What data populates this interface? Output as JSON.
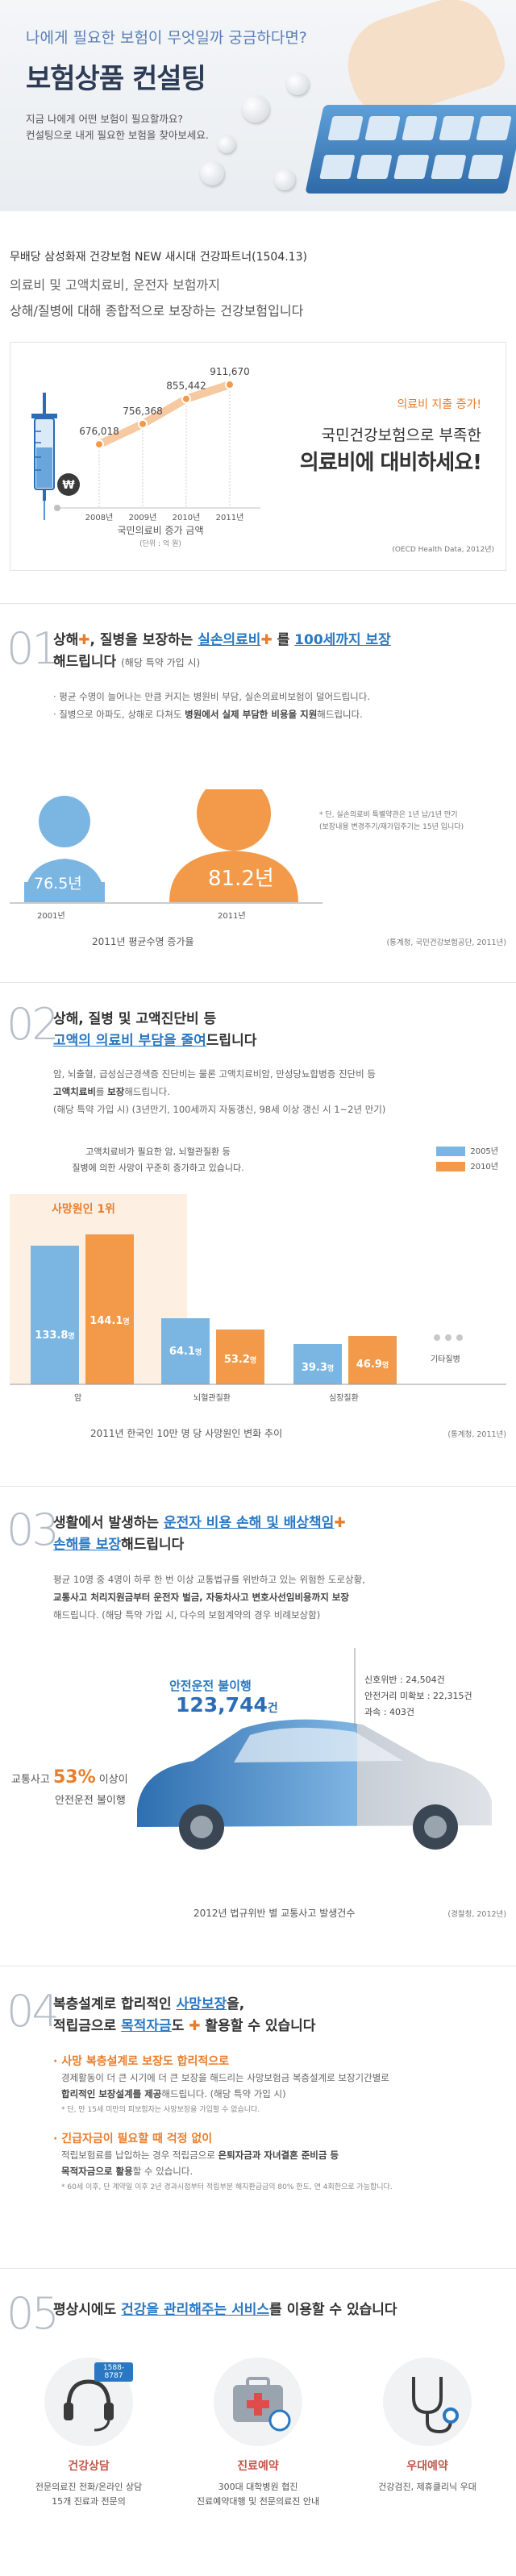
{
  "hero": {
    "subtitle": "나에게 필요한 보험이 무엇일까 궁금하다면?",
    "title": "보험상품 컨설팅",
    "desc1": "지금 나에게 어떤 보험이 필요할까요?",
    "desc2": "컨설팅으로 내게 필요한 보험을 찾아보세요."
  },
  "intro": {
    "product": "무배당 삼성화재 건강보험 NEW 새시대 건강파트너(1504.13)",
    "line2": "의료비 및 고액치료비, 운전자 보험까지",
    "line3": "상해/질병에 대해 종합적으로 보장하는 건강보험입니다"
  },
  "expense_chart": {
    "title": "국민의료비 증가 금액",
    "unit": "(단위 : 억 원)",
    "source": "(OECD Health Data, 2012년)",
    "alert": "의료비 지출 증가!",
    "msg1": "국민건강보험으로 부족한",
    "msg2": "의료비에 대비하세요!",
    "currency_icon": "₩",
    "labels": [
      "676,018",
      "756,368",
      "855,442",
      "911,670"
    ],
    "years": [
      "2008년",
      "2009년",
      "2010년",
      "2011년"
    ]
  },
  "chart_data": {
    "type": "line",
    "title": "국민의료비 증가 금액",
    "categories": [
      "2008년",
      "2009년",
      "2010년",
      "2011년"
    ],
    "values": [
      676018,
      756368,
      855442,
      911670
    ],
    "ylabel": "억 원",
    "ylim": [
      600000,
      950000
    ]
  },
  "sec1": {
    "num": "01",
    "head_a": "상해",
    "head_b": ", 질병을 보장하는 ",
    "head_c": "실손의료비",
    "head_d": " 를 ",
    "head_e": "100세까지 보장",
    "head_f": "해드립니다",
    "head_note": "(해당 특약 가입 시)",
    "b1": "· 평균 수명이 늘어나는 만큼 커지는 병원비 부담, 실손의료비보험이 덜어드립니다.",
    "b2a": "· 질병으로 아파도, 상해로 다쳐도 ",
    "b2b": "병원에서 실제 부담한 비용을 지원",
    "b2c": "해드립니다.",
    "note1": "* 단, 실손의료비 특별약관은 1년 납/1년 만기",
    "note2": "(보장내용 변경주기/재가입주기는 15년 입니다)",
    "age1": "76.5년",
    "age2": "81.2년",
    "year1": "2001년",
    "year2": "2011년",
    "caption": "2011년 평균수명 증가율",
    "source": "(통계청, 국민건강보험공단, 2011년)"
  },
  "sec2": {
    "num": "02",
    "h1": "상해, 질병 및 고액진단비 등",
    "h2": "고액의 의료비 부담을 줄여",
    "h3": "드립니다",
    "b1": "암, 뇌출혈, 급성심근경색증 진단비는 물론 고액치료비암, 만성당뇨합병증 진단비 등",
    "b2a": "고액치료비",
    "b2b": "를 ",
    "b2c": "보장",
    "b2d": "해드립니다.",
    "b3": "(해당 특약 가입 시) (3년만기, 100세까지 자동갱신, 98세 이상 갱신 시 1~2년 만기)",
    "note1": "고액치료비가 필요한 암, 뇌혈관질환 등",
    "note2": "질병에 의한 사망이 꾸준히 증가하고 있습니다.",
    "legend_a": "2005년",
    "legend_b": "2010년",
    "rank": "사망원인 1위",
    "v1a": "133.8",
    "v1b": "144.1",
    "v2a": "64.1",
    "v2b": "53.2",
    "v3a": "39.3",
    "v3b": "46.9",
    "unit": "명",
    "c1": "암",
    "c2": "뇌혈관질환",
    "c3": "심장질환",
    "c4": "기타질병",
    "caption": "2011년 한국인 10만 명 당 사망원인 변화 추이",
    "source": "(통계청, 2011년)"
  },
  "sec3": {
    "num": "03",
    "h1a": "생활에서 발생하는 ",
    "h1b": "운전자 비용 손해 및 배상책임",
    "h2a": "손해를 보장",
    "h2b": "해드립니다",
    "b1": "평균 10명 중 4명이 하루 한 번 이상 교통법규를 위반하고 있는 위험한 도로상황,",
    "b2": "교통사고 처리지원금부터 운전자 벌금, 자동차사고 변호사선임비용까지 보장",
    "b3": "해드립니다. (해당 특약 가입 시, 다수의 보험계약의 경우 비례보상함)",
    "label": "안전운전 불이행",
    "count": "123,744",
    "count_unit": "건",
    "left_a": "교통사고 ",
    "left_pct": "53%",
    "left_b": " 이상이",
    "left_c": "안전운전 불이행",
    "s1": "신호위반 : 24,504건",
    "s2": "안전거리 미확보 : 22,315건",
    "s3": "과속 : 403건",
    "caption": "2012년 법규위반 별 교통사고 발생건수",
    "source": "(경찰청, 2012년)"
  },
  "sec4": {
    "num": "04",
    "h1a": "복층설계로 합리적인 ",
    "h1b": "사망보장",
    "h1c": "을,",
    "h2a": "적립금으로 ",
    "h2b": "목적자금",
    "h2c": "도 ",
    "h2d": " 활용할 수 있습니다",
    "p1": "· 사망 복층설계로 보장도 합리적으로",
    "p1a": "경제활동이 더 큰 시기에 더 큰 보장을 해드리는 사망보험금 복층설계로 보장기간별로",
    "p1b": "합리적인 보장설계를 제공",
    "p1c": "해드립니다. (해당 특약 가입 시)",
    "p1n": "* 단, 만 15세 미만의 피보험자는 사망보장을 가입할 수 없습니다.",
    "p2": "· 긴급자금이 필요할 때 걱정 없이",
    "p2a": "적립보험료를 납입하는 경우 적립금으로 ",
    "p2b": "은퇴자금과 자녀결혼 준비금 등",
    "p2c": "목적자금으로 활용",
    "p2d": "할 수 있습니다.",
    "p2n": "* 60세 이후, 단 계약일 이후 2년 경과시점부터 적립부분 해지환급금의 80% 한도, 연 4회한으로 가능합니다."
  },
  "sec5": {
    "num": "05",
    "h1a": "평상시에도 ",
    "h1b": "건강을 관리해주는 서비스",
    "h1c": "를 이용할 수 있습니다",
    "svc1_name": "건강상담",
    "svc1_badge": "1588-8787",
    "svc1_d1": "전문의료진 전화/온라인 상담",
    "svc1_d2": "15개 진료과 전문의",
    "svc2_name": "진료예약",
    "svc2_d1": "300대 대학병원 협진",
    "svc2_d2": "진료예약대행 및 전문의료진 안내",
    "svc3_name": "우대예약",
    "svc3_d1": "건강검진, 제휴클리닉 우대"
  }
}
